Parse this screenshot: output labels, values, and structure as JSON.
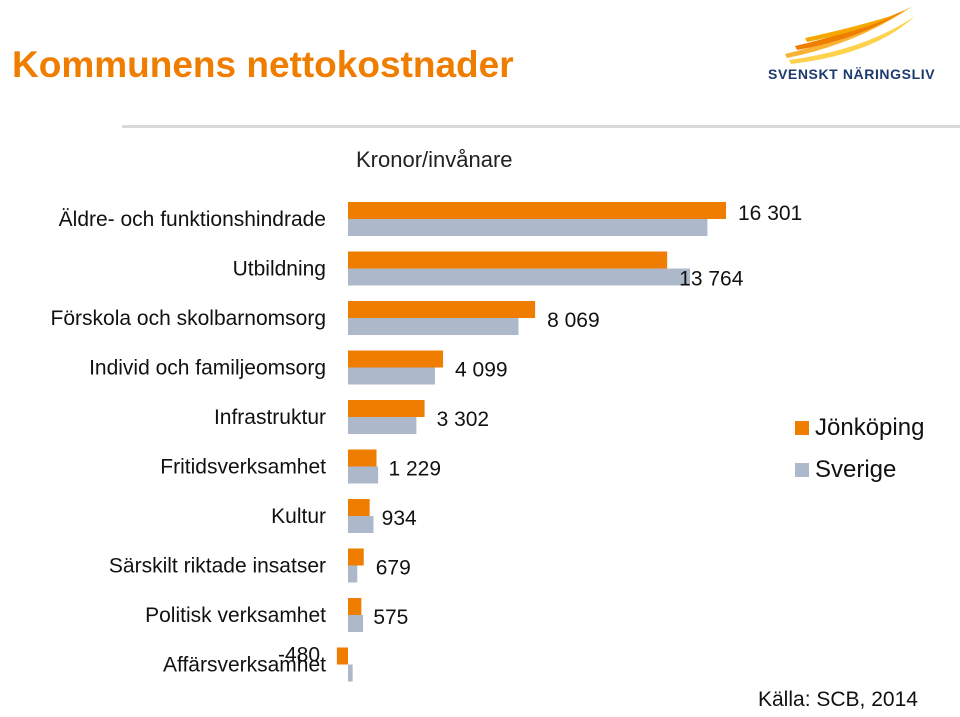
{
  "header": {
    "title": "Kommunens nettokostnader",
    "logo_text": "SVENSKT NÄRINGSLIV"
  },
  "colors": {
    "title": "#ef7d00",
    "series_1": "#ef7d00",
    "series_2": "#adb9ca"
  },
  "chart_data": {
    "type": "bar",
    "orientation": "horizontal",
    "title": "",
    "subtitle": "Kronor/invånare",
    "categories": [
      "Äldre- och funktionshindrade",
      "Utbildning",
      "Förskola och skolbarnomsorg",
      "Individ och familjeomsorg",
      "Infrastruktur",
      "Fritidsverksamhet",
      "Kultur",
      "Särskilt riktade insatser",
      "Politisk verksamhet",
      "Affärsverksamhet"
    ],
    "series": [
      {
        "name": "Jönköping",
        "values": [
          16301,
          13764,
          8069,
          4099,
          3302,
          1229,
          934,
          679,
          575,
          -480
        ],
        "labels": [
          "16 301",
          "13 764",
          "8 069",
          "4 099",
          "3 302",
          "1 229",
          "934",
          "679",
          "575",
          "-480"
        ]
      },
      {
        "name": "Sverige",
        "values": [
          15500,
          14750,
          7350,
          3750,
          2950,
          1300,
          1100,
          400,
          650,
          200
        ]
      }
    ],
    "xlim": [
      -600,
      16800
    ],
    "legend_position": "right",
    "grid": false
  },
  "source": "Källa: SCB, 2014"
}
